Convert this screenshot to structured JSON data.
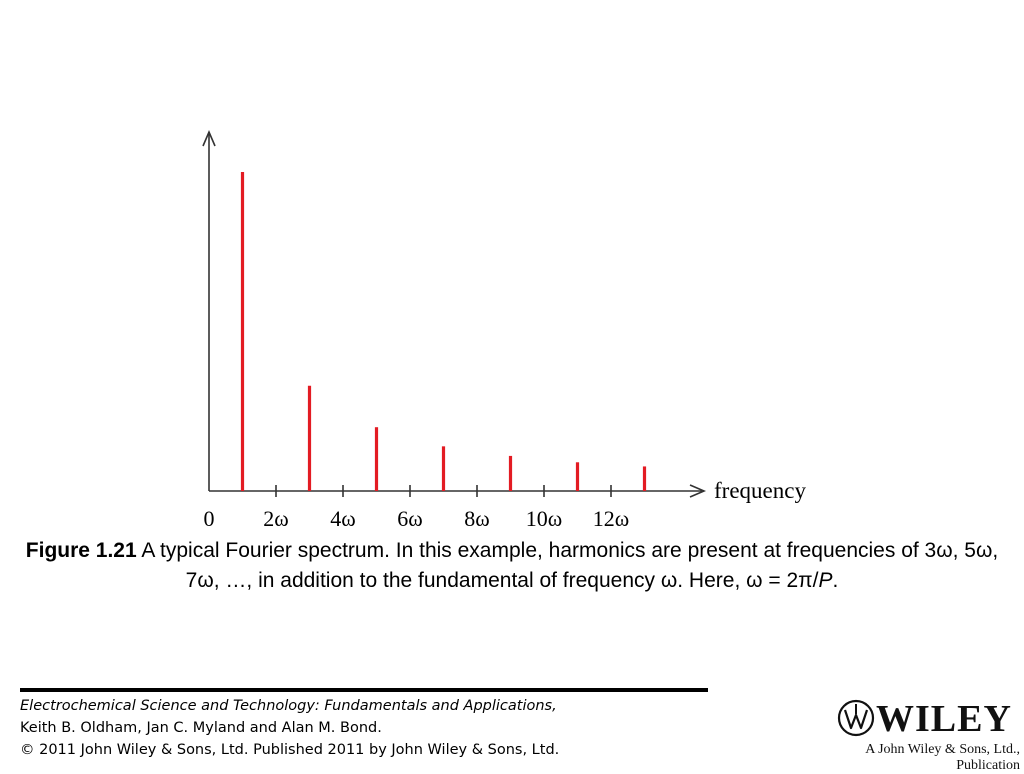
{
  "chart_data": {
    "type": "bar",
    "x_axis_label": "frequency",
    "tick_labels": [
      "0",
      "2ω",
      "4ω",
      "6ω",
      "8ω",
      "10ω",
      "12ω"
    ],
    "tick_positions": [
      0,
      2,
      4,
      6,
      8,
      10,
      12
    ],
    "harmonics": [
      1,
      3,
      5,
      7,
      9,
      11,
      13
    ],
    "amplitudes": [
      1.0,
      0.33,
      0.2,
      0.14,
      0.11,
      0.09,
      0.077
    ],
    "bar_color": "#e31b23",
    "axis_color": "#333333"
  },
  "caption": {
    "label": "Figure 1.21",
    "text": " A typical Fourier spectrum. In this example, harmonics are present at frequencies of 3ω, 5ω, 7ω, …, in addition to the fundamental of frequency ω. Here, ω = 2π/",
    "variable": "P",
    "end": "."
  },
  "footer": {
    "book_title": "Electrochemical Science and Technology: Fundamentals and Applications,",
    "authors": "Keith B. Oldham, Jan C. Myland and Alan M. Bond.",
    "copyright": "© 2011 John Wiley & Sons, Ltd. Published 2011 by John Wiley & Sons, Ltd."
  },
  "logo": {
    "wordmark": "WILEY",
    "tagline": "A John Wiley & Sons, Ltd., Publication"
  }
}
